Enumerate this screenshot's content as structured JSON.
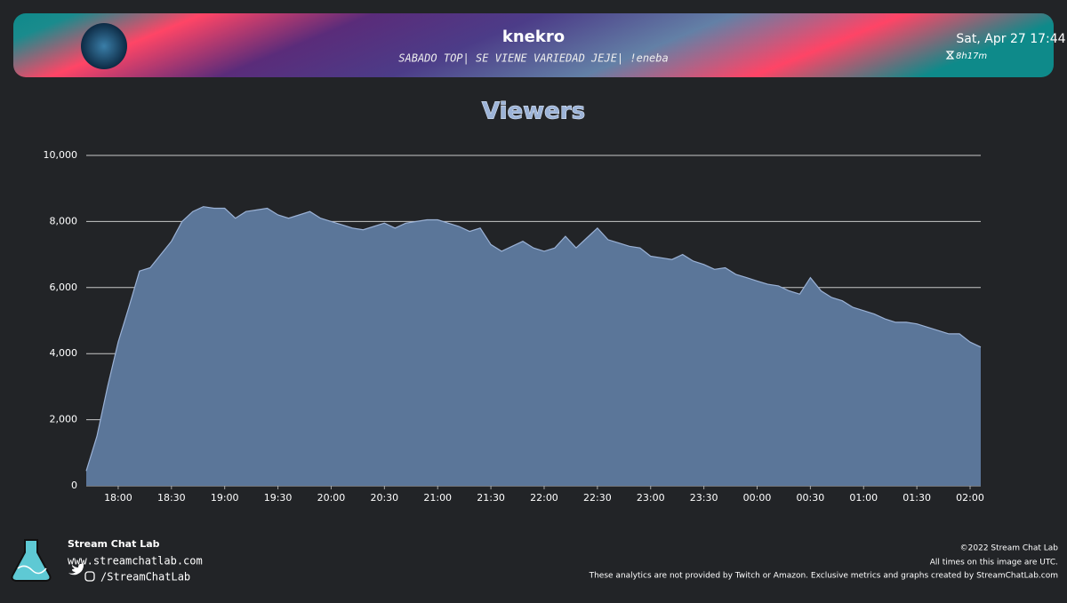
{
  "header": {
    "channel": "knekro",
    "stream_title": "SABADO TOP| SE VIENE VARIEDAD JEJE| !eneba",
    "date": "Sat, Apr 27 17:44",
    "duration": "8h17m"
  },
  "chart_data": {
    "type": "area",
    "title": "Viewers",
    "color": "#5b7699",
    "line_color": "#9bb2d6",
    "grid": true,
    "x": [
      "17:42",
      "17:48",
      "17:54",
      "18:00",
      "18:06",
      "18:12",
      "18:18",
      "18:24",
      "18:30",
      "18:36",
      "18:42",
      "18:48",
      "18:54",
      "19:00",
      "19:06",
      "19:12",
      "19:18",
      "19:24",
      "19:30",
      "19:36",
      "19:42",
      "19:48",
      "19:54",
      "20:00",
      "20:06",
      "20:12",
      "20:18",
      "20:24",
      "20:30",
      "20:36",
      "20:42",
      "20:48",
      "20:54",
      "21:00",
      "21:06",
      "21:12",
      "21:18",
      "21:24",
      "21:30",
      "21:36",
      "21:42",
      "21:48",
      "21:54",
      "22:00",
      "22:06",
      "22:12",
      "22:18",
      "22:24",
      "22:30",
      "22:36",
      "22:42",
      "22:48",
      "22:54",
      "23:00",
      "23:06",
      "23:12",
      "23:18",
      "23:24",
      "23:30",
      "23:36",
      "23:42",
      "23:48",
      "23:54",
      "00:00",
      "00:06",
      "00:12",
      "00:18",
      "00:24",
      "00:30",
      "00:36",
      "00:42",
      "00:48",
      "00:54",
      "01:00",
      "01:06",
      "01:12",
      "01:18",
      "01:24",
      "01:30",
      "01:36",
      "01:42",
      "01:48",
      "01:54",
      "02:00",
      "02:06"
    ],
    "values": [
      450,
      1500,
      3000,
      4350,
      5400,
      6500,
      6600,
      7000,
      7400,
      8000,
      8300,
      8450,
      8400,
      8400,
      8100,
      8300,
      8350,
      8400,
      8200,
      8100,
      8200,
      8300,
      8100,
      8000,
      7900,
      7800,
      7750,
      7850,
      7950,
      7800,
      7950,
      8000,
      8050,
      8050,
      7950,
      7850,
      7700,
      7800,
      7300,
      7100,
      7250,
      7400,
      7200,
      7100,
      7200,
      7550,
      7200,
      7500,
      7800,
      7450,
      7350,
      7250,
      7200,
      6950,
      6900,
      6850,
      7000,
      6800,
      6700,
      6550,
      6600,
      6400,
      6300,
      6200,
      6100,
      6050,
      5900,
      5800,
      6300,
      5900,
      5700,
      5600,
      5400,
      5300,
      5200,
      5050,
      4950,
      4950,
      4900,
      4800,
      4700,
      4600,
      4600,
      4350,
      4200
    ],
    "xlim": [
      "17:42",
      "02:06"
    ],
    "xticks": [
      "18:00",
      "18:30",
      "19:00",
      "19:30",
      "20:00",
      "20:30",
      "21:00",
      "21:30",
      "22:00",
      "22:30",
      "23:00",
      "23:30",
      "00:00",
      "00:30",
      "01:00",
      "01:30",
      "02:00"
    ],
    "ylim": [
      0,
      10000
    ],
    "yticks": [
      0,
      {
        "value": 2000,
        "label": "2,000"
      },
      {
        "value": 4000,
        "label": "4,000"
      },
      {
        "value": 6000,
        "label": "6,000"
      },
      {
        "value": 8000,
        "label": "8,000"
      },
      {
        "value": 10000,
        "label": "10,000"
      }
    ]
  },
  "footer": {
    "brand": "Stream Chat Lab",
    "url": "www.streamchatlab.com",
    "handle": "/StreamChatLab",
    "copyright": "©2022 Stream Chat Lab",
    "utc_note": "All times on this image are UTC.",
    "disclaimer": "These analytics are not provided by Twitch or Amazon. Exclusive metrics and graphs created by StreamChatLab.com"
  }
}
